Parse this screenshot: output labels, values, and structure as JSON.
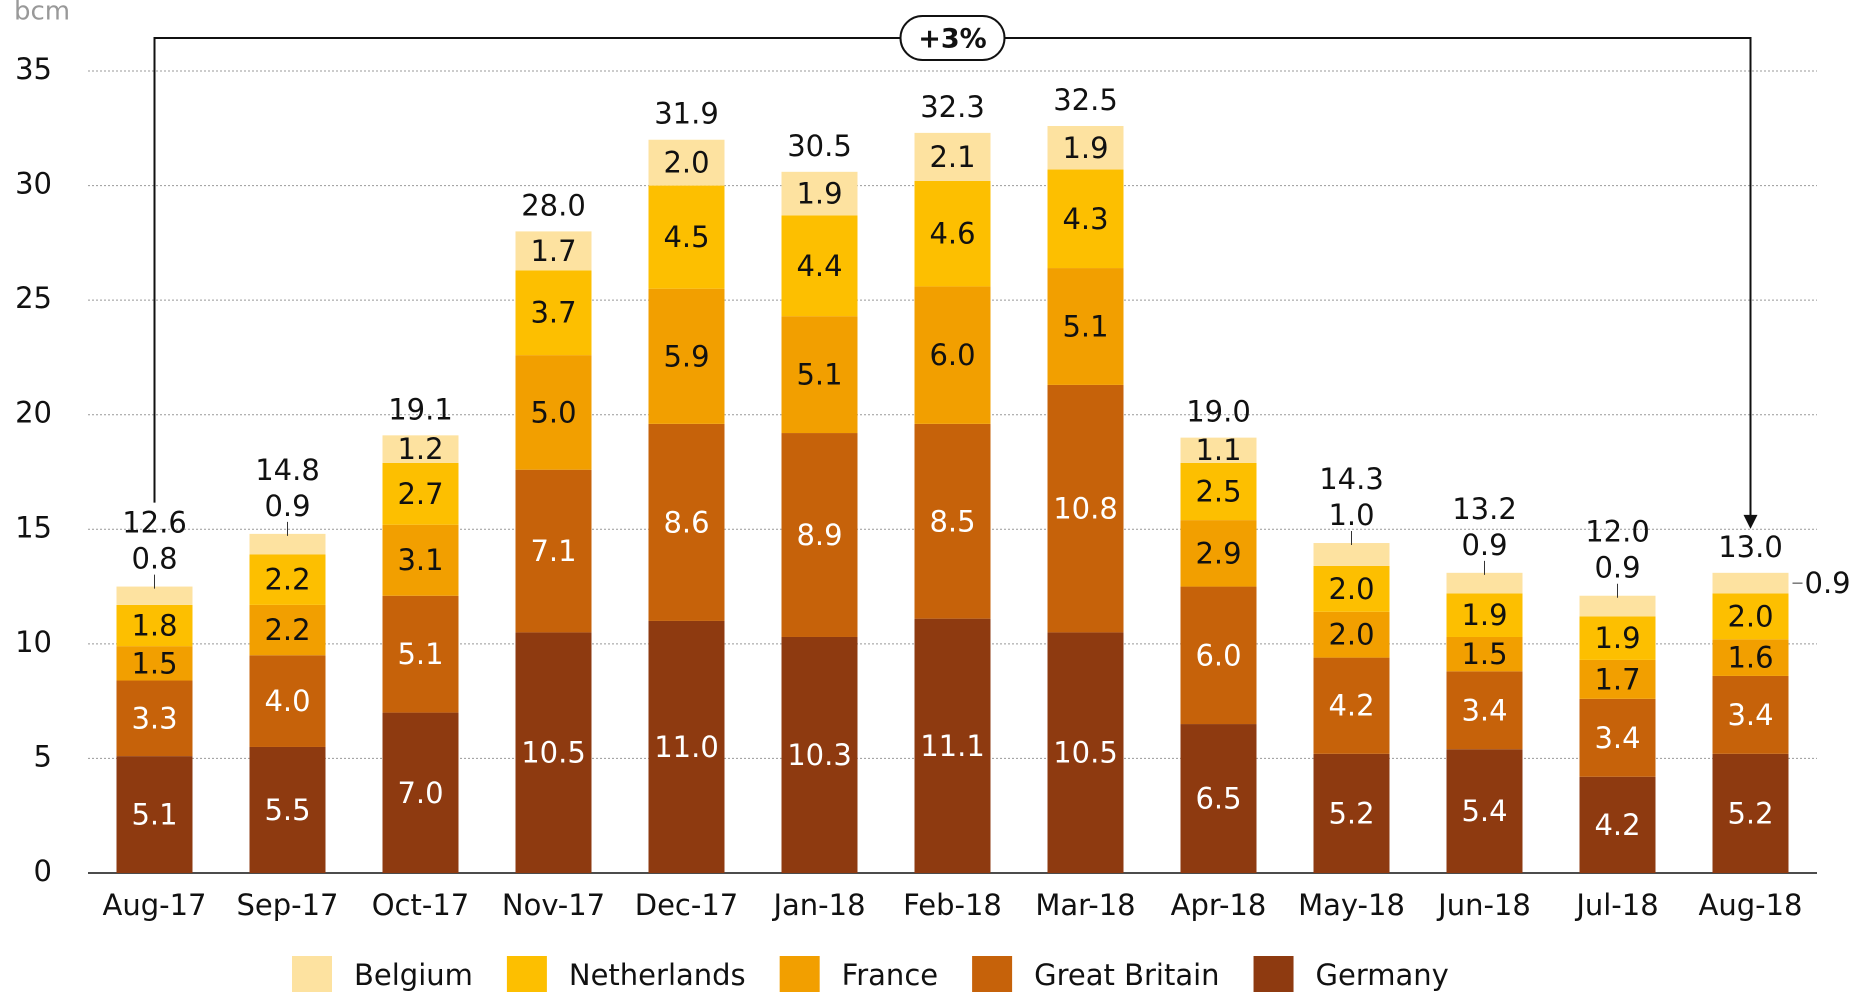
{
  "chart_data": {
    "type": "stacked_bar",
    "y_label": "bcm",
    "annotation": "+3%",
    "categories": [
      "Aug-17",
      "Sep-17",
      "Oct-17",
      "Nov-17",
      "Dec-17",
      "Jan-18",
      "Feb-18",
      "Mar-18",
      "Apr-18",
      "May-18",
      "Jun-18",
      "Jul-18",
      "Aug-18"
    ],
    "series": [
      {
        "name": "Belgium",
        "color": "#fde2a0",
        "values": [
          0.8,
          0.9,
          1.2,
          1.7,
          2.0,
          1.9,
          2.1,
          1.9,
          1.1,
          1.0,
          0.9,
          0.9,
          0.9
        ],
        "value_labels": [
          "0.8",
          "0.9",
          "1.2",
          "1.7",
          "2.0",
          "1.9",
          "2.1",
          "1.9",
          "1.1",
          "1.0",
          "0.9",
          "0.9",
          "0.9"
        ]
      },
      {
        "name": "Netherlands",
        "color": "#fdbf00",
        "values": [
          1.8,
          2.2,
          2.7,
          3.7,
          4.5,
          4.4,
          4.6,
          4.3,
          2.5,
          2.0,
          1.9,
          1.9,
          2.0
        ],
        "value_labels": [
          "1.8",
          "2.2",
          "2.7",
          "3.7",
          "4.5",
          "4.4",
          "4.6",
          "4.3",
          "2.5",
          "2.0",
          "1.9",
          "1.9",
          "2.0"
        ]
      },
      {
        "name": "France",
        "color": "#f29f00",
        "values": [
          1.5,
          2.2,
          3.1,
          5.0,
          5.9,
          5.1,
          6.0,
          5.1,
          2.9,
          2.0,
          1.5,
          1.7,
          1.6
        ],
        "value_labels": [
          "1.5",
          "2.2",
          "3.1",
          "5.0",
          "5.9",
          "5.1",
          "6.0",
          "5.1",
          "2.9",
          "2.0",
          "1.5",
          "1.7",
          "1.6"
        ]
      },
      {
        "name": "Great Britain",
        "color": "#c6620a",
        "values": [
          3.3,
          4.0,
          5.1,
          7.1,
          8.6,
          8.9,
          8.5,
          10.8,
          6.0,
          4.2,
          3.4,
          3.4,
          3.4
        ],
        "value_labels": [
          "3.3",
          "4.0",
          "5.1",
          "7.1",
          "8.6",
          "8.9",
          "8.5",
          "10.8",
          "6.0",
          "4.2",
          "3.4",
          "3.4",
          "3.4"
        ]
      },
      {
        "name": "Germany",
        "color": "#8e3a10",
        "values": [
          5.1,
          5.5,
          7.0,
          10.5,
          11.0,
          10.3,
          11.1,
          10.5,
          6.5,
          5.2,
          5.4,
          4.2,
          5.2
        ],
        "value_labels": [
          "5.1",
          "5.5",
          "7.0",
          "10.5",
          "11.0",
          "10.3",
          "11.1",
          "10.5",
          "6.5",
          "5.2",
          "5.4",
          "4.2",
          "5.2"
        ]
      }
    ],
    "totals": [
      12.6,
      14.8,
      19.1,
      28.0,
      31.9,
      30.5,
      32.3,
      32.5,
      19.0,
      14.3,
      13.2,
      12.0,
      13.0
    ],
    "total_labels": [
      "12.6",
      "14.8",
      "19.1",
      "28.0",
      "31.9",
      "30.5",
      "32.3",
      "32.5",
      "19.0",
      "14.3",
      "13.2",
      "12.0",
      "13.0"
    ],
    "ylim": [
      0,
      35
    ],
    "yticks": [
      0,
      5,
      10,
      15,
      20,
      25,
      30,
      35
    ],
    "grid": true
  }
}
